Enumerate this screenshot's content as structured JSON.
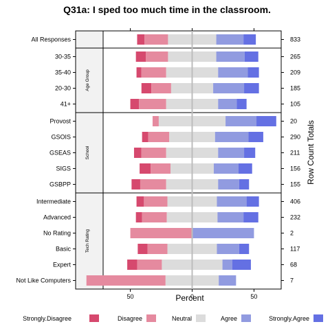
{
  "chart_data": {
    "type": "bar",
    "subtype": "diverging-stacked-likert",
    "title": "Q31a: I sped too much time in the classroom.",
    "xlabel": "Percent",
    "right_axis_label": "Row Count Totals",
    "xlim": [
      -72,
      72
    ],
    "xticks": [
      -50,
      0,
      50
    ],
    "xtick_labels": [
      "50",
      "0",
      "50"
    ],
    "levels": [
      "Strongly.Disagree",
      "Disagree",
      "Neutral",
      "Agree",
      "Strongly.Agree"
    ],
    "colors": {
      "Strongly.Disagree": "#d6496e",
      "Disagree": "#e58a9f",
      "Neutral": "#dcdcdc",
      "Agree": "#919be0",
      "Strongly.Agree": "#6470e3"
    },
    "legend_position": "bottom",
    "panels": [
      {
        "strip": "",
        "rows": [
          {
            "label": "All Responses",
            "total": "833",
            "values": [
              6,
              19,
              39,
              22,
              10
            ]
          }
        ]
      },
      {
        "strip": "Age Group",
        "rows": [
          {
            "label": "30-35",
            "total": "265",
            "values": [
              8,
              18,
              39,
              23,
              11
            ]
          },
          {
            "label": "35-40",
            "total": "209",
            "values": [
              4,
              20,
              42,
              24,
              9
            ]
          },
          {
            "label": "20-30",
            "total": "185",
            "values": [
              8,
              16,
              34,
              25,
              12
            ]
          },
          {
            "label": "41+",
            "total": "105",
            "values": [
              7,
              22,
              42,
              15,
              8
            ]
          }
        ]
      },
      {
        "strip": "School",
        "rows": [
          {
            "label": "Provost",
            "total": "20",
            "values": [
              0,
              5,
              54,
              25,
              16
            ]
          },
          {
            "label": "GSOIS",
            "total": "290",
            "values": [
              5,
              17,
              37,
              27,
              12
            ]
          },
          {
            "label": "GSEAS",
            "total": "211",
            "values": [
              6,
              20,
              42,
              21,
              9
            ]
          },
          {
            "label": "SIGS",
            "total": "156",
            "values": [
              9,
              16,
              35,
              20,
              11
            ]
          },
          {
            "label": "GSBPP",
            "total": "155",
            "values": [
              7,
              21,
              42,
              17,
              8
            ]
          }
        ]
      },
      {
        "strip": "Tech Rating",
        "rows": [
          {
            "label": "Intermediate",
            "total": "406",
            "values": [
              6,
              19,
              40,
              24,
              10
            ]
          },
          {
            "label": "Advanced",
            "total": "232",
            "values": [
              5,
              20,
              41,
              21,
              12
            ]
          },
          {
            "label": "No Rating",
            "total": "2",
            "values": [
              0,
              50,
              0,
              50,
              0
            ]
          },
          {
            "label": "Basic",
            "total": "117",
            "values": [
              8,
              16,
              40,
              18,
              8
            ]
          },
          {
            "label": "Expert",
            "total": "68",
            "values": [
              8,
              20,
              49,
              8,
              15
            ]
          },
          {
            "label": "Not Like Computers",
            "total": "7",
            "values": [
              0,
              64,
              43,
              14,
              0
            ]
          }
        ]
      }
    ]
  }
}
